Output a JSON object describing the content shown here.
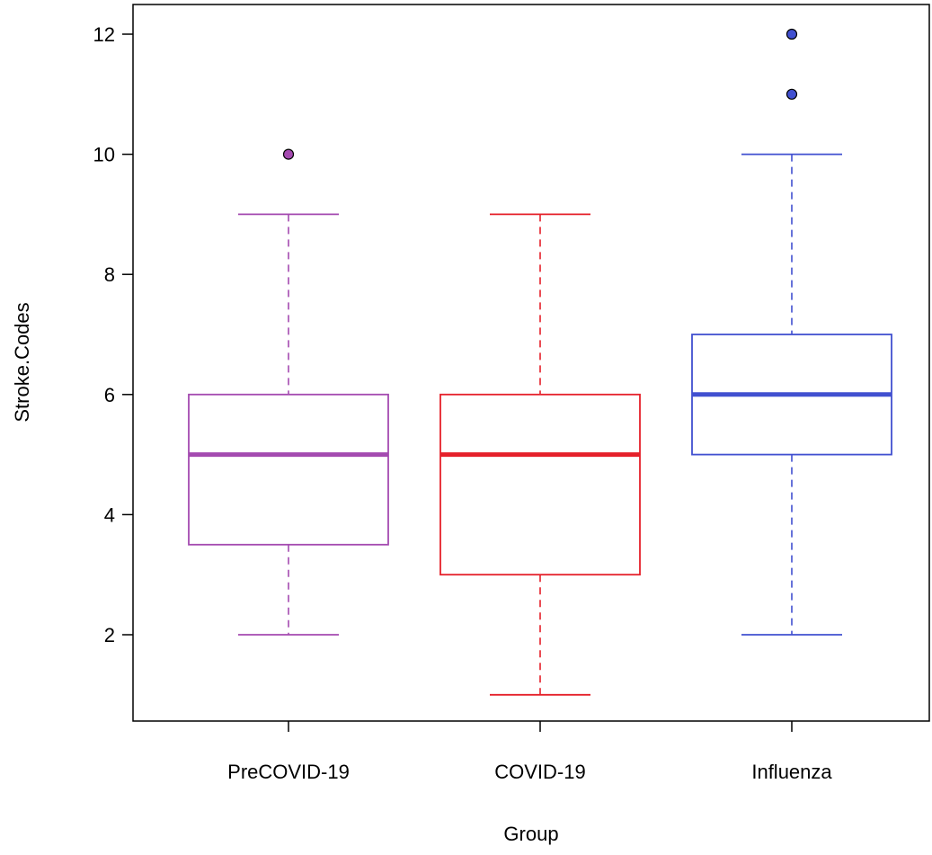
{
  "chart_data": {
    "type": "boxplot",
    "title": "",
    "xlabel": "Group",
    "ylabel": "Stroke.Codes",
    "ylim": [
      0.5,
      12.5
    ],
    "yticks": [
      2,
      4,
      6,
      8,
      10,
      12
    ],
    "categories": [
      "PreCOVID-19",
      "COVID-19",
      "Influenza"
    ],
    "boxes": [
      {
        "name": "PreCOVID-19",
        "color": "#A44AB0",
        "whisker_low": 2,
        "q1": 3.5,
        "median": 5,
        "q3": 6,
        "whisker_high": 9,
        "outliers": [
          10
        ]
      },
      {
        "name": "COVID-19",
        "color": "#E5202A",
        "whisker_low": 1,
        "q1": 3,
        "median": 5,
        "q3": 6,
        "whisker_high": 9,
        "outliers": []
      },
      {
        "name": "Influenza",
        "color": "#4150D0",
        "whisker_low": 2,
        "q1": 5,
        "median": 6,
        "q3": 7,
        "whisker_high": 10,
        "outliers": [
          11,
          12
        ]
      }
    ],
    "grid": false,
    "legend": "none"
  }
}
